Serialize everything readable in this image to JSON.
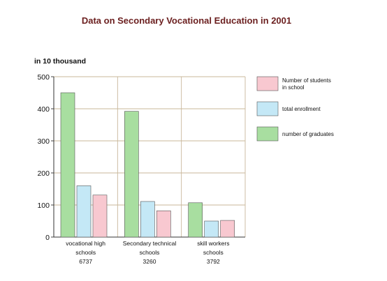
{
  "chart_data": {
    "type": "bar",
    "title": "Data on Secondary Vocational Education in 2001",
    "ylabel": "in 10 thousand",
    "ylim": [
      0,
      500
    ],
    "yticks": [
      "0",
      "100",
      "200",
      "300",
      "400",
      "500"
    ],
    "grid": true,
    "legend_position": "right",
    "categories": [
      {
        "lines": [
          "vocational  high",
          "schools",
          "6737"
        ]
      },
      {
        "lines": [
          "Secondary  technical",
          "schools",
          "3260"
        ]
      },
      {
        "lines": [
          "skill  workers",
          "schools",
          "3792"
        ]
      }
    ],
    "series": [
      {
        "name": "number of graduates",
        "color": "#a8dea0",
        "values": [
          450,
          392,
          107
        ]
      },
      {
        "name": "total enrollment",
        "color": "#c4e8f6",
        "values": [
          160,
          111,
          50
        ]
      },
      {
        "name": "Number of students in school",
        "color": "#f8c8d0",
        "values": [
          131,
          82,
          52
        ]
      }
    ],
    "legend": [
      {
        "series": 2,
        "lines": [
          "Number of students",
          "in school"
        ]
      },
      {
        "series": 1,
        "lines": [
          "total enrollment"
        ]
      },
      {
        "series": 0,
        "lines": [
          "number of graduates"
        ]
      }
    ]
  }
}
